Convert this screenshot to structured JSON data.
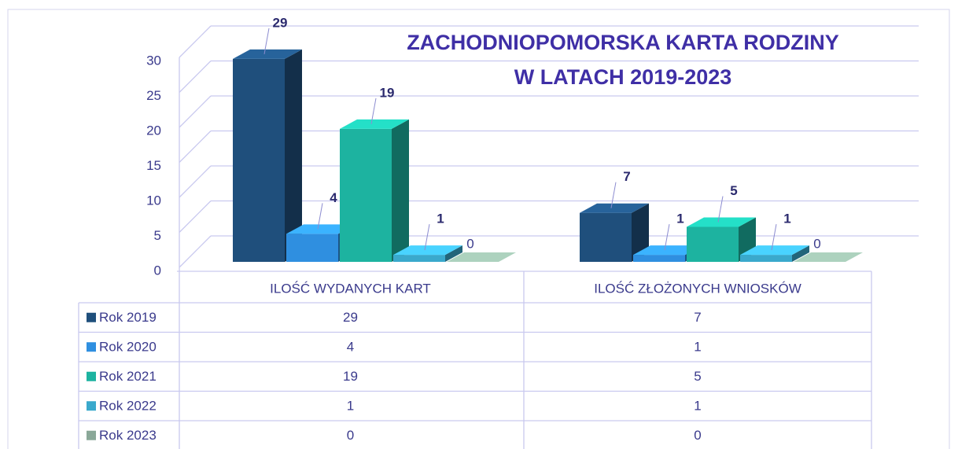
{
  "chart_data": {
    "type": "bar3d",
    "title": [
      "ZACHODNIOPOMORSKA KARTA RODZINY",
      "W LATACH 2019-2023"
    ],
    "categories": [
      "ILOŚĆ WYDANYCH KART",
      "ILOŚĆ ZŁOŻONYCH WNIOSKÓW"
    ],
    "series": [
      {
        "name": "Rok 2019",
        "color": "#1f4f7c",
        "values": [
          29,
          7
        ]
      },
      {
        "name": "Rok 2020",
        "color": "#2f8fe0",
        "values": [
          4,
          1
        ]
      },
      {
        "name": "Rok 2021",
        "color": "#1db3a0",
        "values": [
          19,
          5
        ]
      },
      {
        "name": "Rok 2022",
        "color": "#3aa9cc",
        "values": [
          1,
          1
        ]
      },
      {
        "name": "Rok 2023",
        "color": "#8aa898",
        "values": [
          0,
          0
        ]
      }
    ],
    "ylim": [
      0,
      30
    ],
    "yticks": [
      0,
      5,
      10,
      15,
      20,
      25,
      30
    ],
    "grid": true
  }
}
